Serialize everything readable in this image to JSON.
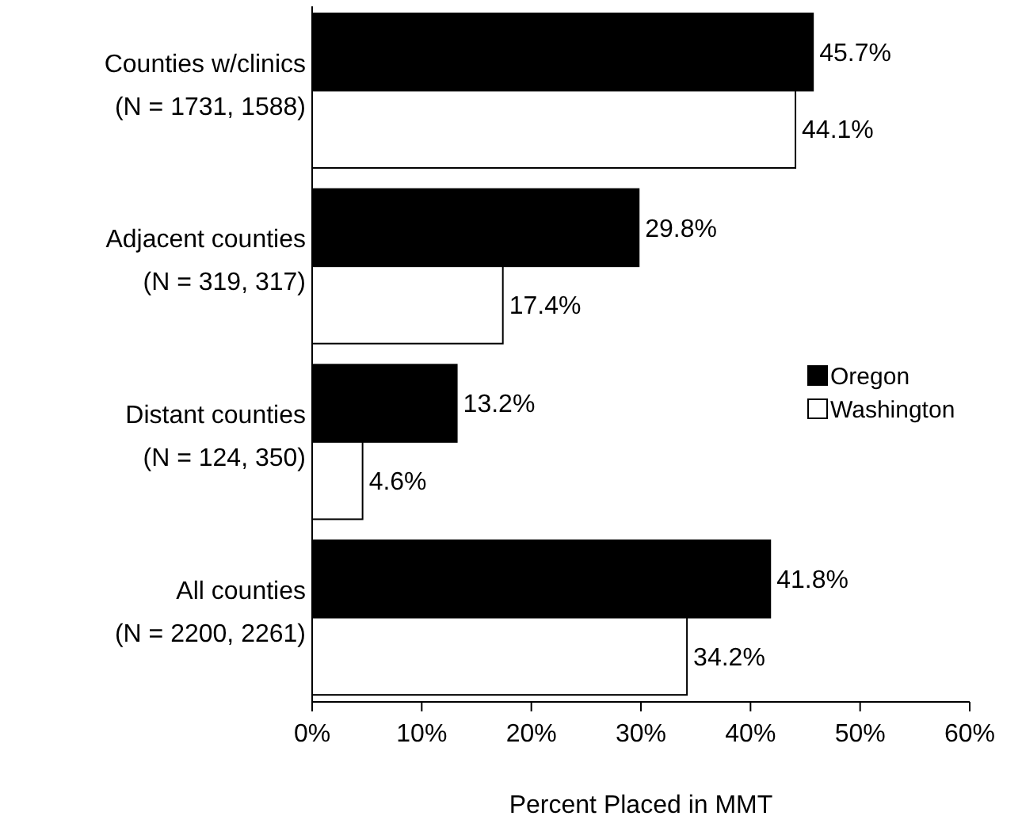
{
  "chart_data": {
    "type": "bar",
    "orientation": "horizontal",
    "xlabel": "Percent Placed in MMT",
    "categories": [
      "Counties w/clinics\n(N = 1731, 1588)",
      "Adjacent counties\n(N = 319, 317)",
      "Distant counties\n(N = 124, 350)",
      "All counties\n(N = 2200, 2261)"
    ],
    "series": [
      {
        "name": "Oregon",
        "color": "#000000",
        "values": [
          45.7,
          29.8,
          13.2,
          41.8
        ],
        "value_labels": [
          "45.7%",
          "29.8%",
          "13.2%",
          "41.8%"
        ]
      },
      {
        "name": "Washington",
        "color": "#ffffff",
        "values": [
          44.1,
          17.4,
          4.6,
          34.2
        ],
        "value_labels": [
          "44.1%",
          "17.4%",
          "4.6%",
          "34.2%"
        ]
      }
    ],
    "xlim": [
      0,
      60
    ],
    "xticks": [
      {
        "value": 0,
        "label": "0%"
      },
      {
        "value": 10,
        "label": "10%"
      },
      {
        "value": 20,
        "label": "20%"
      },
      {
        "value": 30,
        "label": "30%"
      },
      {
        "value": 40,
        "label": "40%"
      },
      {
        "value": 50,
        "label": "50%"
      },
      {
        "value": 60,
        "label": "60%"
      }
    ],
    "legend": "right",
    "grid": false
  }
}
